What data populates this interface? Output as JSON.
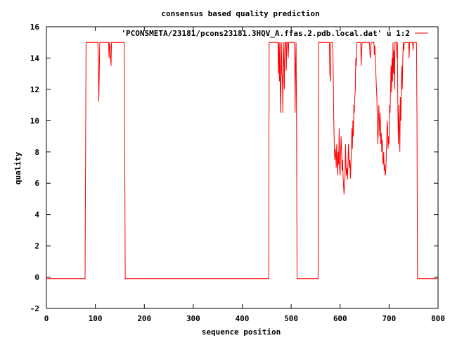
{
  "chart_data": {
    "type": "line",
    "title": "consensus based quality prediction",
    "xlabel": "sequence position",
    "ylabel": "quality",
    "xlim": [
      0,
      800
    ],
    "ylim": [
      -2,
      16
    ],
    "xticks": [
      0,
      100,
      200,
      300,
      400,
      500,
      600,
      700,
      800
    ],
    "yticks": [
      -2,
      0,
      2,
      4,
      6,
      8,
      10,
      12,
      14,
      16
    ],
    "grid": false,
    "legend_position": "top-right",
    "series": [
      {
        "name": "'PCONSMETA/23181/pcons23181.3HQV_A.ffas.2.pdb.local.dat' u 1:2",
        "color": "#ff0000",
        "points": [
          [
            0,
            -0.1
          ],
          [
            79,
            -0.1
          ],
          [
            80,
            7.5
          ],
          [
            81,
            15
          ],
          [
            105,
            15
          ],
          [
            106,
            14
          ],
          [
            107,
            11.2
          ],
          [
            108,
            13
          ],
          [
            109,
            15
          ],
          [
            127,
            15
          ],
          [
            128,
            14
          ],
          [
            129,
            15
          ],
          [
            130,
            14.8
          ],
          [
            131,
            14
          ],
          [
            132,
            13.5
          ],
          [
            133,
            15
          ],
          [
            159,
            15
          ],
          [
            160,
            8
          ],
          [
            161,
            -0.1
          ],
          [
            454,
            -0.1
          ],
          [
            455,
            15
          ],
          [
            473,
            15
          ],
          [
            474,
            13
          ],
          [
            475,
            15
          ],
          [
            476,
            12.5
          ],
          [
            477,
            15
          ],
          [
            478,
            10.5
          ],
          [
            479,
            12
          ],
          [
            480,
            15
          ],
          [
            481,
            13
          ],
          [
            482,
            12.8
          ],
          [
            483,
            10.5
          ],
          [
            484,
            15
          ],
          [
            485,
            14
          ],
          [
            486,
            12
          ],
          [
            487,
            15
          ],
          [
            489,
            15
          ],
          [
            490,
            13.2
          ],
          [
            491,
            15
          ],
          [
            493,
            15
          ],
          [
            494,
            14
          ],
          [
            495,
            15
          ],
          [
            507,
            15
          ],
          [
            508,
            10.5
          ],
          [
            509,
            13.5
          ],
          [
            510,
            15
          ],
          [
            511,
            10
          ],
          [
            512,
            -0.1
          ],
          [
            555,
            -0.1
          ],
          [
            556,
            15
          ],
          [
            578,
            15
          ],
          [
            579,
            13
          ],
          [
            580,
            12.5
          ],
          [
            581,
            15
          ],
          [
            584,
            15
          ],
          [
            585,
            14.5
          ],
          [
            586,
            13
          ],
          [
            587,
            10
          ],
          [
            588,
            8.5
          ],
          [
            589,
            7.5
          ],
          [
            590,
            8.2
          ],
          [
            591,
            7.8
          ],
          [
            592,
            7
          ],
          [
            593,
            8.5
          ],
          [
            594,
            7.5
          ],
          [
            595,
            6.5
          ],
          [
            596,
            8
          ],
          [
            597,
            7.2
          ],
          [
            598,
            9.5
          ],
          [
            599,
            7
          ],
          [
            600,
            6.5
          ],
          [
            601,
            8
          ],
          [
            602,
            9
          ],
          [
            603,
            8
          ],
          [
            604,
            6.8
          ],
          [
            605,
            7.5
          ],
          [
            606,
            6.5
          ],
          [
            607,
            5.8
          ],
          [
            608,
            5.3
          ],
          [
            609,
            6
          ],
          [
            610,
            6.5
          ],
          [
            611,
            8.5
          ],
          [
            612,
            7
          ],
          [
            613,
            6.5
          ],
          [
            614,
            7
          ],
          [
            615,
            6.2
          ],
          [
            616,
            7.2
          ],
          [
            617,
            8.5
          ],
          [
            618,
            7.5
          ],
          [
            619,
            7
          ],
          [
            620,
            7.5
          ],
          [
            621,
            6.3
          ],
          [
            622,
            7.2
          ],
          [
            623,
            8
          ],
          [
            624,
            9.5
          ],
          [
            625,
            8.2
          ],
          [
            626,
            10
          ],
          [
            627,
            9
          ],
          [
            628,
            11
          ],
          [
            629,
            10.5
          ],
          [
            630,
            11.5
          ],
          [
            631,
            12
          ],
          [
            632,
            14
          ],
          [
            633,
            13.5
          ],
          [
            634,
            15
          ],
          [
            642,
            15
          ],
          [
            643,
            13.5
          ],
          [
            644,
            14.5
          ],
          [
            645,
            15
          ],
          [
            660,
            15
          ],
          [
            661,
            14.2
          ],
          [
            662,
            14
          ],
          [
            663,
            14.8
          ],
          [
            664,
            15
          ],
          [
            669,
            15
          ],
          [
            670,
            14.2
          ],
          [
            671,
            14.8
          ],
          [
            672,
            14
          ],
          [
            673,
            13
          ],
          [
            674,
            12.2
          ],
          [
            675,
            11.5
          ],
          [
            676,
            10
          ],
          [
            677,
            8.5
          ],
          [
            678,
            9.5
          ],
          [
            679,
            11
          ],
          [
            680,
            10
          ],
          [
            681,
            9
          ],
          [
            682,
            10.5
          ],
          [
            683,
            8.5
          ],
          [
            684,
            9.2
          ],
          [
            685,
            8
          ],
          [
            686,
            8.8
          ],
          [
            687,
            7.5
          ],
          [
            688,
            7.2
          ],
          [
            689,
            8
          ],
          [
            690,
            6.8
          ],
          [
            691,
            7.2
          ],
          [
            692,
            6.5
          ],
          [
            693,
            6.6
          ],
          [
            694,
            7.5
          ],
          [
            695,
            8.5
          ],
          [
            696,
            10
          ],
          [
            697,
            9.5
          ],
          [
            698,
            8.2
          ],
          [
            699,
            9
          ],
          [
            700,
            8.5
          ],
          [
            701,
            11
          ],
          [
            702,
            10.5
          ],
          [
            703,
            12
          ],
          [
            704,
            13.5
          ],
          [
            705,
            11.8
          ],
          [
            706,
            14
          ],
          [
            707,
            12.5
          ],
          [
            708,
            15
          ],
          [
            709,
            13
          ],
          [
            710,
            14.5
          ],
          [
            711,
            12
          ],
          [
            712,
            15
          ],
          [
            715,
            15
          ],
          [
            716,
            14
          ],
          [
            717,
            15
          ],
          [
            718,
            10.5
          ],
          [
            719,
            8.5
          ],
          [
            720,
            11
          ],
          [
            721,
            9.5
          ],
          [
            722,
            8
          ],
          [
            723,
            11.5
          ],
          [
            724,
            10
          ],
          [
            725,
            12.2
          ],
          [
            726,
            13.5
          ],
          [
            727,
            12
          ],
          [
            728,
            14
          ],
          [
            729,
            15
          ],
          [
            730,
            14.5
          ],
          [
            731,
            15
          ],
          [
            740,
            15
          ],
          [
            741,
            14
          ],
          [
            742,
            15
          ],
          [
            748,
            15
          ],
          [
            749,
            14.5
          ],
          [
            750,
            15
          ],
          [
            756,
            15
          ],
          [
            757,
            10
          ],
          [
            758,
            -0.1
          ],
          [
            800,
            -0.1
          ]
        ]
      }
    ]
  }
}
